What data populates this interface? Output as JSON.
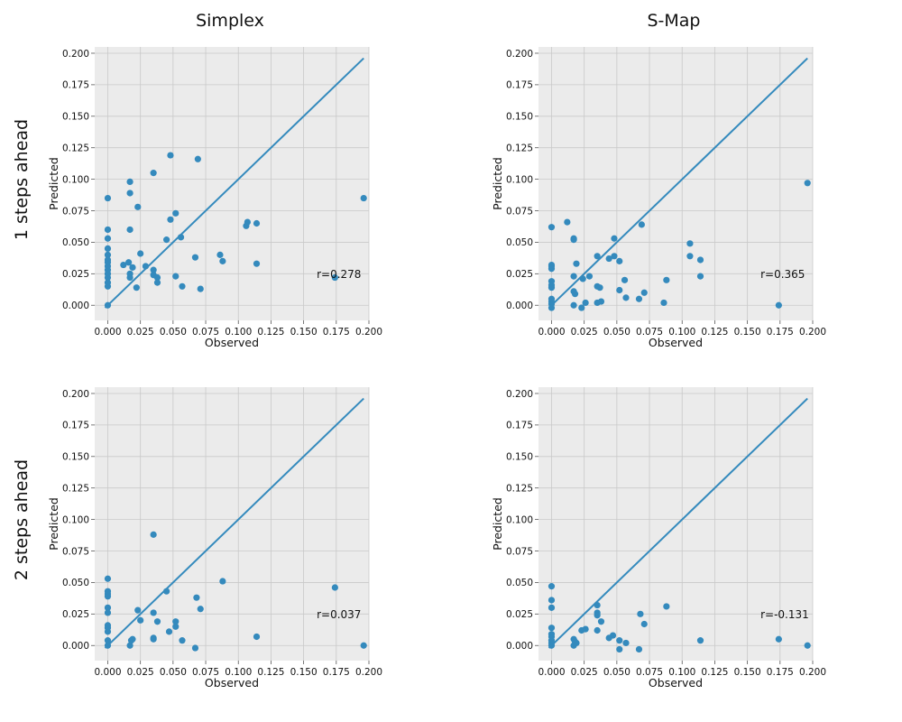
{
  "figure": {
    "column_titles": [
      "Simplex",
      "S-Map"
    ],
    "row_titles": [
      "1 steps ahead",
      "2 steps ahead"
    ]
  },
  "colors": {
    "panel_background": "#ebebeb",
    "grid": "#c9c9c9",
    "marker": "#348abd",
    "identity_line": "#348abd",
    "text": "#111111"
  },
  "chart_data": [
    {
      "type": "scatter",
      "title": "Simplex",
      "row_label": "1 steps ahead",
      "xlabel": "Observed",
      "ylabel": "Predicted",
      "xlim": [
        -0.01,
        0.2
      ],
      "ylim": [
        -0.012,
        0.205
      ],
      "xticks": [
        "0.000",
        "0.025",
        "0.050",
        "0.075",
        "0.100",
        "0.125",
        "0.150",
        "0.175",
        "0.200"
      ],
      "yticks": [
        "0.000",
        "0.025",
        "0.050",
        "0.075",
        "0.100",
        "0.125",
        "0.150",
        "0.175",
        "0.200"
      ],
      "grid": true,
      "identity_line": [
        [
          -0.002,
          -0.002
        ],
        [
          0.196,
          0.196
        ]
      ],
      "annotation": "r=0.278",
      "points": [
        [
          0.0,
          0.0
        ],
        [
          0.0,
          0.015
        ],
        [
          0.0,
          0.018
        ],
        [
          0.0,
          0.022
        ],
        [
          0.0,
          0.025
        ],
        [
          0.0,
          0.028
        ],
        [
          0.0,
          0.031
        ],
        [
          0.0,
          0.034
        ],
        [
          0.0,
          0.036
        ],
        [
          0.0,
          0.04
        ],
        [
          0.0,
          0.045
        ],
        [
          0.0,
          0.053
        ],
        [
          0.0,
          0.06
        ],
        [
          0.0,
          0.085
        ],
        [
          0.012,
          0.032
        ],
        [
          0.016,
          0.034
        ],
        [
          0.017,
          0.025
        ],
        [
          0.017,
          0.022
        ],
        [
          0.017,
          0.06
        ],
        [
          0.017,
          0.089
        ],
        [
          0.017,
          0.098
        ],
        [
          0.019,
          0.03
        ],
        [
          0.022,
          0.014
        ],
        [
          0.023,
          0.078
        ],
        [
          0.025,
          0.041
        ],
        [
          0.029,
          0.031
        ],
        [
          0.035,
          0.105
        ],
        [
          0.035,
          0.028
        ],
        [
          0.035,
          0.024
        ],
        [
          0.038,
          0.022
        ],
        [
          0.038,
          0.018
        ],
        [
          0.045,
          0.052
        ],
        [
          0.048,
          0.119
        ],
        [
          0.048,
          0.068
        ],
        [
          0.052,
          0.073
        ],
        [
          0.052,
          0.023
        ],
        [
          0.056,
          0.054
        ],
        [
          0.057,
          0.015
        ],
        [
          0.067,
          0.038
        ],
        [
          0.069,
          0.116
        ],
        [
          0.071,
          0.013
        ],
        [
          0.086,
          0.04
        ],
        [
          0.088,
          0.035
        ],
        [
          0.106,
          0.063
        ],
        [
          0.107,
          0.066
        ],
        [
          0.114,
          0.065
        ],
        [
          0.114,
          0.033
        ],
        [
          0.174,
          0.022
        ],
        [
          0.196,
          0.085
        ]
      ]
    },
    {
      "type": "scatter",
      "title": "S-Map",
      "row_label": "1 steps ahead",
      "xlabel": "Observed",
      "ylabel": "Predicted",
      "xlim": [
        -0.01,
        0.2
      ],
      "ylim": [
        -0.012,
        0.205
      ],
      "xticks": [
        "0.000",
        "0.025",
        "0.050",
        "0.075",
        "0.100",
        "0.125",
        "0.150",
        "0.175",
        "0.200"
      ],
      "yticks": [
        "0.000",
        "0.025",
        "0.050",
        "0.075",
        "0.100",
        "0.125",
        "0.150",
        "0.175",
        "0.200"
      ],
      "grid": true,
      "identity_line": [
        [
          -0.002,
          -0.002
        ],
        [
          0.196,
          0.196
        ]
      ],
      "annotation": "r=0.365",
      "points": [
        [
          0.0,
          -0.002
        ],
        [
          0.0,
          0.001
        ],
        [
          0.0,
          0.003
        ],
        [
          0.0,
          0.005
        ],
        [
          0.0,
          0.014
        ],
        [
          0.0,
          0.016
        ],
        [
          0.0,
          0.019
        ],
        [
          0.0,
          0.029
        ],
        [
          0.0,
          0.031
        ],
        [
          0.0,
          0.032
        ],
        [
          0.0,
          0.062
        ],
        [
          0.012,
          0.066
        ],
        [
          0.017,
          0.052
        ],
        [
          0.017,
          0.053
        ],
        [
          0.017,
          0.023
        ],
        [
          0.017,
          0.011
        ],
        [
          0.018,
          0.009
        ],
        [
          0.017,
          0.0
        ],
        [
          0.019,
          0.033
        ],
        [
          0.023,
          -0.002
        ],
        [
          0.024,
          0.021
        ],
        [
          0.026,
          0.002
        ],
        [
          0.029,
          0.023
        ],
        [
          0.035,
          0.039
        ],
        [
          0.035,
          0.015
        ],
        [
          0.035,
          0.002
        ],
        [
          0.037,
          0.014
        ],
        [
          0.038,
          0.003
        ],
        [
          0.044,
          0.037
        ],
        [
          0.048,
          0.053
        ],
        [
          0.048,
          0.039
        ],
        [
          0.052,
          0.035
        ],
        [
          0.052,
          0.012
        ],
        [
          0.056,
          0.02
        ],
        [
          0.057,
          0.006
        ],
        [
          0.067,
          0.005
        ],
        [
          0.069,
          0.064
        ],
        [
          0.071,
          0.01
        ],
        [
          0.086,
          0.002
        ],
        [
          0.088,
          0.02
        ],
        [
          0.106,
          0.039
        ],
        [
          0.106,
          0.049
        ],
        [
          0.114,
          0.036
        ],
        [
          0.114,
          0.023
        ],
        [
          0.174,
          0.0
        ],
        [
          0.196,
          0.097
        ]
      ]
    },
    {
      "type": "scatter",
      "title": "Simplex",
      "row_label": "2 steps ahead",
      "xlabel": "Observed",
      "ylabel": "Predicted",
      "xlim": [
        -0.01,
        0.2
      ],
      "ylim": [
        -0.012,
        0.205
      ],
      "xticks": [
        "0.000",
        "0.025",
        "0.050",
        "0.075",
        "0.100",
        "0.125",
        "0.150",
        "0.175",
        "0.200"
      ],
      "yticks": [
        "0.000",
        "0.025",
        "0.050",
        "0.075",
        "0.100",
        "0.125",
        "0.150",
        "0.175",
        "0.200"
      ],
      "grid": true,
      "identity_line": [
        [
          -0.002,
          -0.002
        ],
        [
          0.196,
          0.196
        ]
      ],
      "annotation": "r=0.037",
      "points": [
        [
          0.0,
          0.0
        ],
        [
          0.0,
          0.004
        ],
        [
          0.0,
          0.011
        ],
        [
          0.0,
          0.014
        ],
        [
          0.0,
          0.016
        ],
        [
          0.0,
          0.026
        ],
        [
          0.0,
          0.03
        ],
        [
          0.0,
          0.039
        ],
        [
          0.0,
          0.041
        ],
        [
          0.0,
          0.043
        ],
        [
          0.0,
          0.053
        ],
        [
          0.017,
          0.0
        ],
        [
          0.018,
          0.004
        ],
        [
          0.019,
          0.005
        ],
        [
          0.023,
          0.028
        ],
        [
          0.025,
          0.02
        ],
        [
          0.035,
          0.088
        ],
        [
          0.035,
          0.026
        ],
        [
          0.035,
          0.006
        ],
        [
          0.035,
          0.005
        ],
        [
          0.038,
          0.019
        ],
        [
          0.045,
          0.043
        ],
        [
          0.047,
          0.011
        ],
        [
          0.052,
          0.019
        ],
        [
          0.052,
          0.015
        ],
        [
          0.057,
          0.004
        ],
        [
          0.067,
          -0.002
        ],
        [
          0.068,
          0.038
        ],
        [
          0.071,
          0.029
        ],
        [
          0.088,
          0.051
        ],
        [
          0.114,
          0.007
        ],
        [
          0.174,
          0.046
        ],
        [
          0.196,
          0.0
        ]
      ]
    },
    {
      "type": "scatter",
      "title": "S-Map",
      "row_label": "2 steps ahead",
      "xlabel": "Observed",
      "ylabel": "Predicted",
      "xlim": [
        -0.01,
        0.2
      ],
      "ylim": [
        -0.012,
        0.205
      ],
      "xticks": [
        "0.000",
        "0.025",
        "0.050",
        "0.075",
        "0.100",
        "0.125",
        "0.150",
        "0.175",
        "0.200"
      ],
      "yticks": [
        "0.000",
        "0.025",
        "0.050",
        "0.075",
        "0.100",
        "0.125",
        "0.150",
        "0.175",
        "0.200"
      ],
      "grid": true,
      "identity_line": [
        [
          -0.002,
          -0.002
        ],
        [
          0.196,
          0.196
        ]
      ],
      "annotation": "r=-0.131",
      "points": [
        [
          0.0,
          0.0
        ],
        [
          0.0,
          0.002
        ],
        [
          0.0,
          0.004
        ],
        [
          0.0,
          0.007
        ],
        [
          0.0,
          0.009
        ],
        [
          0.0,
          0.014
        ],
        [
          0.0,
          0.03
        ],
        [
          0.0,
          0.036
        ],
        [
          0.0,
          0.047
        ],
        [
          0.017,
          0.005
        ],
        [
          0.017,
          0.0
        ],
        [
          0.018,
          0.003
        ],
        [
          0.019,
          0.002
        ],
        [
          0.023,
          0.012
        ],
        [
          0.026,
          0.013
        ],
        [
          0.035,
          0.032
        ],
        [
          0.035,
          0.026
        ],
        [
          0.035,
          0.024
        ],
        [
          0.035,
          0.012
        ],
        [
          0.038,
          0.019
        ],
        [
          0.044,
          0.006
        ],
        [
          0.047,
          0.008
        ],
        [
          0.052,
          -0.003
        ],
        [
          0.052,
          0.004
        ],
        [
          0.057,
          0.002
        ],
        [
          0.067,
          -0.003
        ],
        [
          0.068,
          0.025
        ],
        [
          0.071,
          0.017
        ],
        [
          0.088,
          0.031
        ],
        [
          0.114,
          0.004
        ],
        [
          0.174,
          0.005
        ],
        [
          0.196,
          0.0
        ]
      ]
    }
  ]
}
